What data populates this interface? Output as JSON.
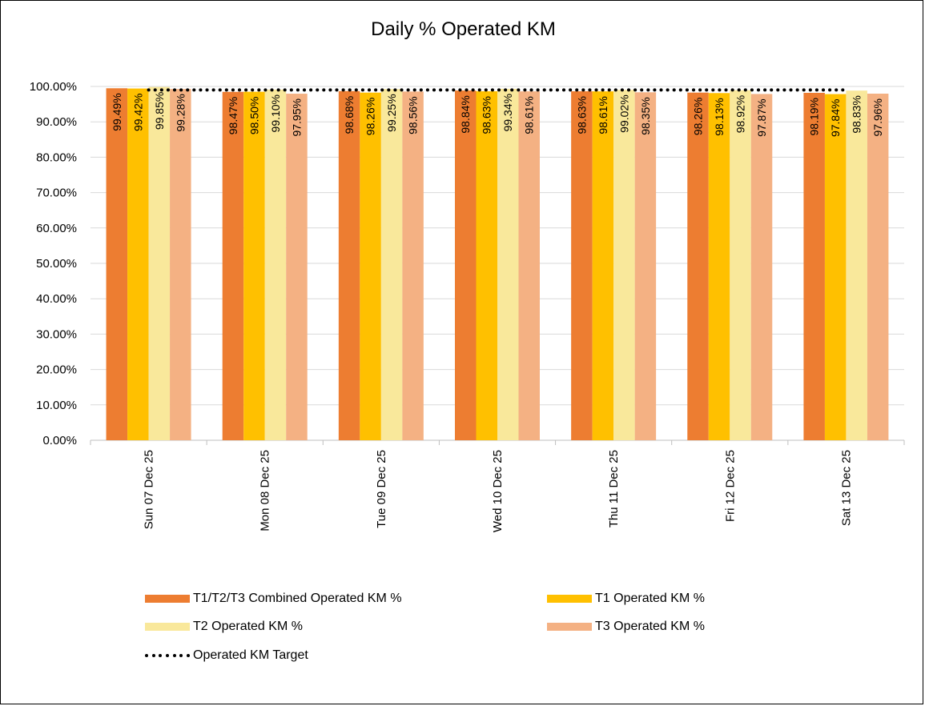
{
  "chart_data": {
    "type": "bar",
    "title": "Daily % Operated KM",
    "xlabel": "",
    "ylabel": "",
    "ylim": [
      0,
      100
    ],
    "yticks": [
      "0.00%",
      "10.00%",
      "20.00%",
      "30.00%",
      "40.00%",
      "50.00%",
      "60.00%",
      "70.00%",
      "80.00%",
      "90.00%",
      "100.00%"
    ],
    "categories": [
      "Sun 07 Dec 25",
      "Mon 08 Dec 25",
      "Tue 09 Dec 25",
      "Wed 10 Dec 25",
      "Thu 11 Dec 25",
      "Fri 12 Dec 25",
      "Sat 13 Dec 25"
    ],
    "series": [
      {
        "name": "T1/T2/T3 Combined Operated KM %",
        "color": "#ED7D31",
        "values": [
          99.49,
          98.47,
          98.68,
          98.84,
          98.63,
          98.26,
          98.19
        ],
        "labels": [
          "99.49%",
          "98.47%",
          "98.68%",
          "98.84%",
          "98.63%",
          "98.26%",
          "98.19%"
        ]
      },
      {
        "name": "T1 Operated KM %",
        "color": "#FFC000",
        "values": [
          99.42,
          98.5,
          98.26,
          98.63,
          98.61,
          98.13,
          97.84
        ],
        "labels": [
          "99.42%",
          "98.50%",
          "98.26%",
          "98.63%",
          "98.61%",
          "98.13%",
          "97.84%"
        ]
      },
      {
        "name": "T2 Operated KM %",
        "color": "#F9E89B",
        "values": [
          99.85,
          99.1,
          99.25,
          99.34,
          99.02,
          98.92,
          98.83
        ],
        "labels": [
          "99.85%",
          "99.10%",
          "99.25%",
          "99.34%",
          "99.02%",
          "98.92%",
          "98.83%"
        ]
      },
      {
        "name": "T3 Operated KM %",
        "color": "#F4B183",
        "values": [
          99.28,
          97.95,
          98.56,
          98.61,
          98.35,
          97.87,
          97.96
        ],
        "labels": [
          "99.28%",
          "97.95%",
          "98.56%",
          "98.61%",
          "98.35%",
          "97.87%",
          "97.96%"
        ]
      }
    ],
    "target": {
      "name": "Operated KM Target",
      "value": 99,
      "color": "#000000"
    },
    "grid": true,
    "legend_position": "bottom"
  }
}
